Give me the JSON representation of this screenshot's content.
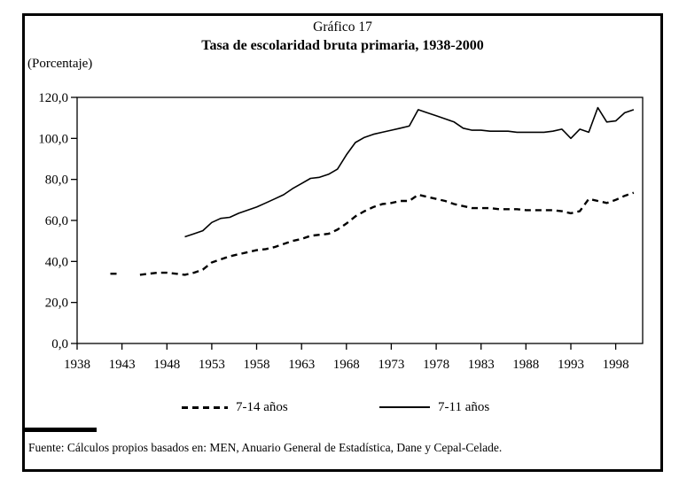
{
  "figure": {
    "label": "Gráfico 17",
    "title": "Tasa de escolaridad bruta primaria, 1938-2000",
    "unit_label": "(Porcentaje)"
  },
  "footer": {
    "source": "Fuente: Cálculos propios basados en: MEN, Anuario General de Estadística, Dane y Cepal-Celade."
  },
  "chart_data": {
    "type": "line",
    "title": "Tasa de escolaridad bruta primaria, 1938-2000",
    "xlabel": "",
    "ylabel": "(Porcentaje)",
    "xlim": [
      1938,
      2001
    ],
    "ylim": [
      0,
      120
    ],
    "grid": false,
    "legend_position": "bottom",
    "axis_color": "#000000",
    "background_color": "#ffffff",
    "y_ticks": [
      0,
      20,
      40,
      60,
      80,
      100,
      120
    ],
    "y_tick_labels": [
      "0,0",
      "20,0",
      "40,0",
      "60,0",
      "80,0",
      "100,0",
      "120,0"
    ],
    "x_ticks": [
      1938,
      1943,
      1948,
      1953,
      1958,
      1963,
      1968,
      1973,
      1978,
      1983,
      1988,
      1993,
      1998
    ],
    "x_tick_labels": [
      "1938",
      "1943",
      "1948",
      "1953",
      "1958",
      "1963",
      "1968",
      "1973",
      "1978",
      "1983",
      "1988",
      "1993",
      "1998"
    ],
    "series": [
      {
        "name": "7-14 años",
        "style": "dashed",
        "color": "#000000",
        "x_start": 1942,
        "values": [
          34,
          null,
          null,
          33.5,
          34,
          34.5,
          34.5,
          34,
          33.5,
          34.5,
          36,
          39.5,
          41,
          42.5,
          43.5,
          44.5,
          45.5,
          46,
          47,
          48.5,
          50,
          51,
          52.5,
          53,
          53.5,
          55.5,
          58.5,
          62,
          64.5,
          66.5,
          68,
          68.5,
          69.5,
          69.5,
          72.5,
          71.5,
          70.5,
          69.5,
          68,
          67,
          66,
          66,
          66,
          65.5,
          65.5,
          65.5,
          65,
          65,
          65,
          65,
          64.5,
          63.5,
          64.5,
          70.5,
          69.5,
          68.5,
          70,
          72,
          73.5
        ]
      },
      {
        "name": "7-11 años",
        "style": "solid",
        "color": "#000000",
        "x_start": 1950,
        "values": [
          52,
          53.5,
          55,
          59,
          61,
          61.5,
          63.5,
          65,
          66.5,
          68.5,
          70.5,
          72.5,
          75.5,
          78,
          80.5,
          81,
          82.5,
          85,
          92,
          98,
          100.5,
          102,
          103,
          104,
          105,
          106,
          114,
          112.5,
          111,
          109.5,
          108,
          105,
          104,
          104,
          103.5,
          103.5,
          103.5,
          103,
          103,
          103,
          103,
          103.5,
          104.5,
          100,
          104.5,
          103,
          115,
          108,
          108.5,
          112.5,
          114
        ]
      }
    ]
  }
}
